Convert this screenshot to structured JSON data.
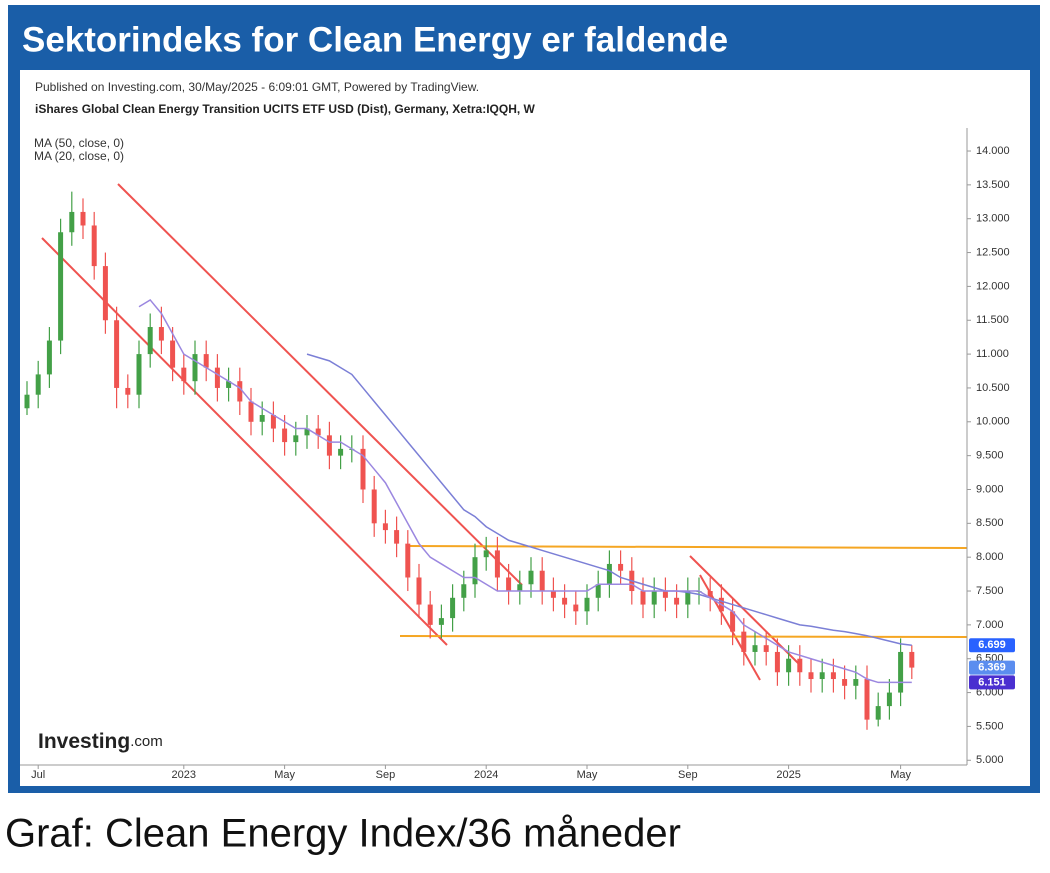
{
  "header": {
    "title": "Sektorindeks for Clean Energy er faldende"
  },
  "caption": "Graf: Clean Energy Index/36 måneder",
  "chart_data": {
    "type": "candlestick",
    "published": "Published on Investing.com, 30/May/2025 - 6:09:01 GMT, Powered by TradingView.",
    "subtitle": "iShares Global Clean Energy Transition UCITS ETF USD (Dist), Germany, Xetra:IQQH, W",
    "watermark": "Investing",
    "watermark_suffix": ".com",
    "categories": [
      null,
      "Jul",
      null,
      null,
      null,
      null,
      null,
      null,
      null,
      null,
      null,
      null,
      null,
      null,
      "2023",
      null,
      null,
      null,
      null,
      null,
      null,
      null,
      null,
      "May",
      null,
      null,
      null,
      null,
      null,
      null,
      null,
      null,
      "Sep",
      null,
      null,
      null,
      null,
      null,
      null,
      null,
      null,
      "2024",
      null,
      null,
      null,
      null,
      null,
      null,
      null,
      null,
      "May",
      null,
      null,
      null,
      null,
      null,
      null,
      null,
      null,
      "Sep",
      null,
      null,
      null,
      null,
      null,
      null,
      null,
      null,
      "2025",
      null,
      null,
      null,
      null,
      null,
      null,
      null,
      null,
      null,
      "May",
      null
    ],
    "open": [
      10.2,
      10.4,
      10.7,
      11.2,
      12.8,
      13.1,
      12.9,
      12.3,
      11.5,
      10.5,
      10.4,
      11.0,
      11.4,
      11.2,
      10.8,
      10.6,
      11.0,
      10.8,
      10.5,
      10.6,
      10.3,
      10.0,
      10.1,
      9.9,
      9.7,
      9.8,
      9.9,
      9.8,
      9.5,
      9.6,
      9.6,
      9.0,
      8.5,
      8.4,
      8.2,
      7.7,
      7.3,
      7.0,
      7.1,
      7.4,
      7.6,
      8.0,
      8.1,
      7.7,
      7.5,
      7.6,
      7.8,
      7.5,
      7.4,
      7.3,
      7.2,
      7.4,
      7.6,
      7.9,
      7.8,
      7.5,
      7.3,
      7.5,
      7.4,
      7.3,
      7.5,
      7.5,
      7.4,
      7.2,
      6.9,
      6.6,
      6.7,
      6.6,
      6.3,
      6.5,
      6.3,
      6.2,
      6.3,
      6.2,
      6.1,
      6.2,
      5.6,
      5.8,
      6.0,
      6.6
    ],
    "high": [
      10.6,
      10.9,
      11.4,
      13.0,
      13.4,
      13.3,
      13.1,
      12.5,
      11.7,
      10.7,
      11.2,
      11.6,
      11.7,
      11.4,
      11.0,
      11.2,
      11.2,
      11.0,
      10.8,
      10.8,
      10.5,
      10.3,
      10.3,
      10.1,
      10.0,
      10.1,
      10.1,
      10.0,
      9.8,
      9.8,
      9.8,
      9.2,
      8.7,
      8.6,
      8.4,
      7.9,
      7.5,
      7.3,
      7.6,
      7.8,
      8.2,
      8.3,
      8.3,
      7.9,
      7.8,
      8.0,
      8.0,
      7.7,
      7.6,
      7.5,
      7.6,
      7.8,
      8.1,
      8.1,
      8.0,
      7.7,
      7.7,
      7.7,
      7.6,
      7.7,
      7.7,
      7.7,
      7.6,
      7.4,
      7.1,
      6.9,
      6.9,
      6.8,
      6.7,
      6.7,
      6.5,
      6.5,
      6.5,
      6.4,
      6.4,
      6.4,
      6.0,
      6.2,
      6.8,
      6.7
    ],
    "low": [
      10.1,
      10.2,
      10.5,
      11.0,
      12.6,
      12.7,
      12.1,
      11.3,
      10.2,
      10.2,
      10.2,
      10.8,
      11.0,
      10.6,
      10.4,
      10.4,
      10.6,
      10.3,
      10.3,
      10.1,
      9.8,
      9.8,
      9.7,
      9.5,
      9.5,
      9.6,
      9.6,
      9.3,
      9.3,
      9.4,
      8.8,
      8.3,
      8.2,
      8.0,
      7.5,
      7.1,
      6.8,
      6.8,
      6.9,
      7.2,
      7.4,
      7.8,
      7.5,
      7.3,
      7.3,
      7.4,
      7.3,
      7.2,
      7.1,
      7.0,
      7.0,
      7.2,
      7.4,
      7.6,
      7.3,
      7.1,
      7.1,
      7.2,
      7.1,
      7.1,
      7.3,
      7.2,
      7.0,
      6.7,
      6.4,
      6.4,
      6.4,
      6.1,
      6.1,
      6.1,
      6.0,
      6.0,
      6.0,
      5.9,
      5.9,
      5.45,
      5.5,
      5.6,
      5.8,
      6.2
    ],
    "close": [
      10.4,
      10.7,
      11.2,
      12.8,
      13.1,
      12.9,
      12.3,
      11.5,
      10.5,
      10.4,
      11.0,
      11.4,
      11.2,
      10.8,
      10.6,
      11.0,
      10.8,
      10.5,
      10.6,
      10.3,
      10.0,
      10.1,
      9.9,
      9.7,
      9.8,
      9.9,
      9.8,
      9.5,
      9.6,
      9.6,
      9.0,
      8.5,
      8.4,
      8.2,
      7.7,
      7.3,
      7.0,
      7.1,
      7.4,
      7.6,
      8.0,
      8.1,
      7.7,
      7.5,
      7.6,
      7.8,
      7.5,
      7.4,
      7.3,
      7.2,
      7.4,
      7.6,
      7.9,
      7.8,
      7.5,
      7.3,
      7.5,
      7.4,
      7.3,
      7.5,
      7.5,
      7.4,
      7.2,
      6.9,
      6.6,
      6.7,
      6.6,
      6.3,
      6.5,
      6.3,
      6.2,
      6.3,
      6.2,
      6.1,
      6.2,
      5.6,
      5.8,
      6.0,
      6.6,
      6.369
    ],
    "up_color": "#43a047",
    "down_color": "#ef5350",
    "series": [
      {
        "name": "MA (50, close, 0)",
        "color": "#7b7fd6",
        "values": [
          null,
          null,
          null,
          null,
          null,
          null,
          null,
          null,
          null,
          null,
          null,
          null,
          null,
          null,
          null,
          null,
          null,
          null,
          null,
          null,
          null,
          null,
          null,
          null,
          null,
          11.0,
          10.95,
          10.9,
          10.8,
          10.7,
          10.5,
          10.3,
          10.1,
          9.9,
          9.7,
          9.5,
          9.3,
          9.1,
          8.9,
          8.7,
          8.6,
          8.45,
          8.35,
          8.25,
          8.2,
          8.15,
          8.1,
          8.05,
          8.0,
          7.95,
          7.9,
          7.85,
          7.8,
          7.7,
          7.65,
          7.6,
          7.55,
          7.5,
          7.5,
          7.48,
          7.45,
          7.4,
          7.35,
          7.3,
          7.25,
          7.2,
          7.15,
          7.1,
          7.05,
          7.0,
          6.98,
          6.95,
          6.92,
          6.9,
          6.87,
          6.84,
          6.8,
          6.76,
          6.72,
          6.699
        ]
      },
      {
        "name": "MA (20, close, 0)",
        "color": "#9b87e0",
        "values": [
          null,
          null,
          null,
          null,
          null,
          null,
          null,
          null,
          null,
          null,
          11.7,
          11.8,
          11.6,
          11.3,
          11.0,
          10.9,
          10.8,
          10.7,
          10.6,
          10.5,
          10.3,
          10.2,
          10.1,
          10.0,
          9.9,
          9.9,
          9.8,
          9.7,
          9.7,
          9.6,
          9.5,
          9.3,
          9.1,
          8.8,
          8.5,
          8.2,
          8.0,
          7.9,
          7.8,
          7.7,
          7.7,
          7.6,
          7.5,
          7.5,
          7.5,
          7.5,
          7.5,
          7.5,
          7.5,
          7.5,
          7.5,
          7.6,
          7.6,
          7.6,
          7.6,
          7.5,
          7.5,
          7.5,
          7.5,
          7.5,
          7.5,
          7.4,
          7.3,
          7.2,
          7.0,
          6.9,
          6.8,
          6.7,
          6.6,
          6.55,
          6.5,
          6.45,
          6.4,
          6.35,
          6.3,
          6.2,
          6.15,
          6.15,
          6.15,
          6.151
        ]
      }
    ],
    "ylim": [
      4.93,
      14.34
    ],
    "yticks": [
      {
        "value": 5,
        "label": "5.000"
      },
      {
        "value": 5.5,
        "label": "5.500"
      },
      {
        "value": 6,
        "label": "6.000"
      },
      {
        "value": 6.5,
        "label": "6.500"
      },
      {
        "value": 7,
        "label": "7.000"
      },
      {
        "value": 7.5,
        "label": "7.500"
      },
      {
        "value": 8,
        "label": "8.000"
      },
      {
        "value": 8.5,
        "label": "8.500"
      },
      {
        "value": 9,
        "label": "9.000"
      },
      {
        "value": 9.5,
        "label": "9.500"
      },
      {
        "value": 10,
        "label": "10.000"
      },
      {
        "value": 10.5,
        "label": "10.500"
      },
      {
        "value": 11,
        "label": "11.000"
      },
      {
        "value": 11.5,
        "label": "11.500"
      },
      {
        "value": 12,
        "label": "12.000"
      },
      {
        "value": 12.5,
        "label": "12.500"
      },
      {
        "value": 13,
        "label": "13.000"
      },
      {
        "value": 13.5,
        "label": "13.500"
      },
      {
        "value": 14,
        "label": "14.000"
      }
    ],
    "grid": false,
    "price_tags": [
      {
        "value": 6.699,
        "label": "6.699",
        "color": "#2962ff"
      },
      {
        "value": 6.369,
        "label": "6.369",
        "color": "#5b8def"
      },
      {
        "value": 6.151,
        "label": "6.151",
        "color": "#4a2fd0"
      }
    ]
  }
}
